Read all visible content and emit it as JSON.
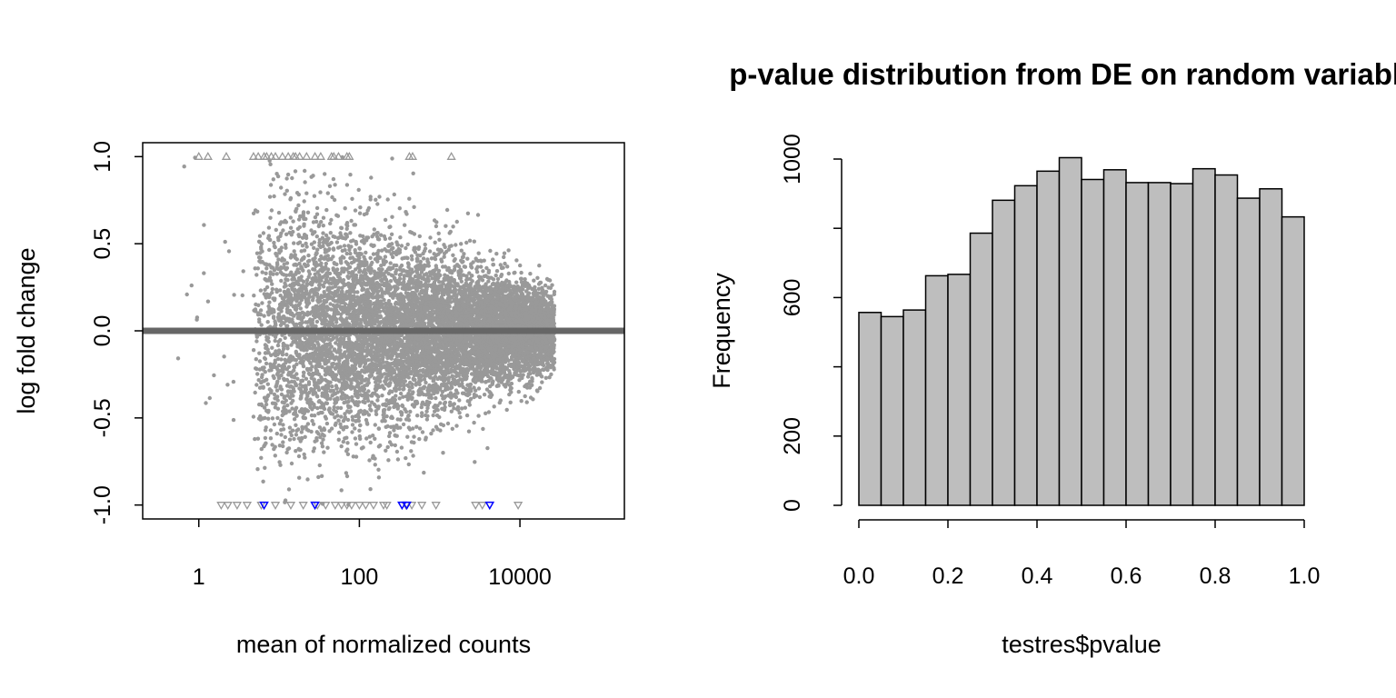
{
  "chart_data": [
    {
      "type": "scatter",
      "title": "",
      "xlabel": "mean of normalized counts",
      "ylabel": "log fold change",
      "x_scale": "log10",
      "xlim": [
        0.2,
        200000
      ],
      "ylim": [
        -1.08,
        1.08
      ],
      "x_ticks": [
        1,
        100,
        10000
      ],
      "x_tick_labels": [
        "1",
        "100",
        "10000"
      ],
      "y_ticks": [
        -1.0,
        -0.5,
        0.0,
        0.5,
        1.0
      ],
      "y_tick_labels": [
        "-1.0",
        "-0.5",
        "0.0",
        "0.5",
        "1.0"
      ],
      "zero_line": 0,
      "colors": {
        "points": "#999999",
        "zero_line": "#666666",
        "significant": "#0000ff"
      },
      "out_of_range_up_x": [
        1,
        1.3,
        2.2,
        4.8,
        5.5,
        6.5,
        7,
        8,
        9,
        11,
        13,
        15,
        16,
        18,
        22,
        28,
        33,
        45,
        48,
        55,
        70,
        75,
        420,
        460,
        1400
      ],
      "out_of_range_down_grey_x": [
        1.9,
        2.3,
        3,
        4,
        6,
        9,
        14,
        20,
        30,
        38,
        50,
        60,
        70,
        80,
        100,
        120,
        150,
        200,
        220,
        380,
        450,
        600,
        900,
        2800,
        3400,
        9500
      ],
      "out_of_range_down_blue_x": [
        6.5,
        28,
        340,
        390,
        4200
      ],
      "grid": false,
      "legend": "none"
    },
    {
      "type": "bar",
      "title": "p-value distribution from DE on random variables",
      "xlabel": "testres$pvalue",
      "ylabel": "Frequency",
      "bin_edges": [
        0.0,
        0.05,
        0.1,
        0.15,
        0.2,
        0.25,
        0.3,
        0.35,
        0.4,
        0.45,
        0.5,
        0.55,
        0.6,
        0.65,
        0.7,
        0.75,
        0.8,
        0.85,
        0.9,
        0.95,
        1.0
      ],
      "values": [
        557,
        545,
        564,
        663,
        667,
        786,
        881,
        923,
        965,
        1004,
        941,
        969,
        932,
        932,
        929,
        972,
        954,
        887,
        914,
        833
      ],
      "xlim": [
        0,
        1
      ],
      "ylim": [
        0,
        1000
      ],
      "x_ticks": [
        0.0,
        0.2,
        0.4,
        0.6,
        0.8,
        1.0
      ],
      "x_tick_labels": [
        "0.0",
        "0.2",
        "0.4",
        "0.6",
        "0.8",
        "1.0"
      ],
      "y_ticks": [
        0,
        200,
        400,
        600,
        800,
        1000
      ],
      "y_tick_labels": [
        "0",
        "200",
        "600",
        "1000"
      ],
      "colors": {
        "bars": "#bebebe",
        "outline": "#000000"
      },
      "grid": false,
      "legend": "none"
    }
  ]
}
